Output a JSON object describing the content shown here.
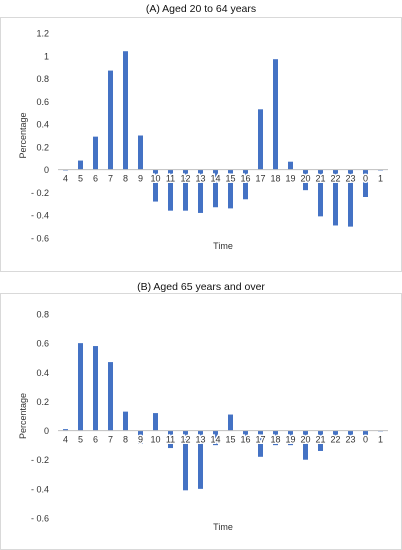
{
  "chart_data": [
    {
      "type": "bar",
      "title": "(A) Aged 20 to 64 years",
      "xlabel": "Time",
      "ylabel": "Percentage",
      "ylim": [
        -0.6,
        1.2
      ],
      "yticks": [
        1.2,
        1,
        0.8,
        0.6,
        0.4,
        0.2,
        0,
        -0.2,
        -0.4,
        -0.6
      ],
      "ytick_labels": [
        "1.2",
        "1",
        "0.8",
        "0.6",
        "0.4",
        "0.2",
        "0",
        "- 0.2",
        "- 0.4",
        "- 0.6"
      ],
      "categories": [
        "4",
        "5",
        "6",
        "7",
        "8",
        "9",
        "10",
        "11",
        "12",
        "13",
        "14",
        "15",
        "16",
        "17",
        "18",
        "19",
        "20",
        "21",
        "22",
        "23",
        "0",
        "1"
      ],
      "values": [
        0,
        0.08,
        0.29,
        0.87,
        1.04,
        0.3,
        -0.28,
        -0.36,
        -0.36,
        -0.38,
        -0.33,
        -0.34,
        -0.26,
        0.53,
        0.97,
        0.07,
        -0.18,
        -0.41,
        -0.49,
        -0.5,
        -0.24,
        0
      ],
      "color": "#4472C4",
      "grid": false,
      "legend": "none"
    },
    {
      "type": "bar",
      "title": "(B) Aged 65 years and over",
      "xlabel": "Time",
      "ylabel": "Percentage",
      "ylim": [
        -0.6,
        0.8
      ],
      "yticks": [
        0.8,
        0.6,
        0.4,
        0.2,
        0,
        -0.2,
        -0.4,
        -0.6
      ],
      "ytick_labels": [
        "0.8",
        "0.6",
        "0.4",
        "0.2",
        "0",
        "- 0.2",
        "- 0.4",
        "- 0.6"
      ],
      "categories": [
        "4",
        "5",
        "6",
        "7",
        "8",
        "9",
        "10",
        "11",
        "12",
        "13",
        "14",
        "15",
        "16",
        "17",
        "18",
        "19",
        "20",
        "21",
        "22",
        "23",
        "0",
        "1"
      ],
      "values": [
        0.01,
        0.6,
        0.58,
        0.47,
        0.13,
        -0.09,
        0.12,
        -0.12,
        -0.41,
        -0.4,
        -0.1,
        0.11,
        -0.09,
        -0.18,
        -0.1,
        -0.1,
        -0.2,
        -0.14,
        -0.04,
        -0.04,
        -0.03,
        0
      ],
      "color": "#4472C4",
      "grid": false,
      "legend": "none"
    }
  ]
}
